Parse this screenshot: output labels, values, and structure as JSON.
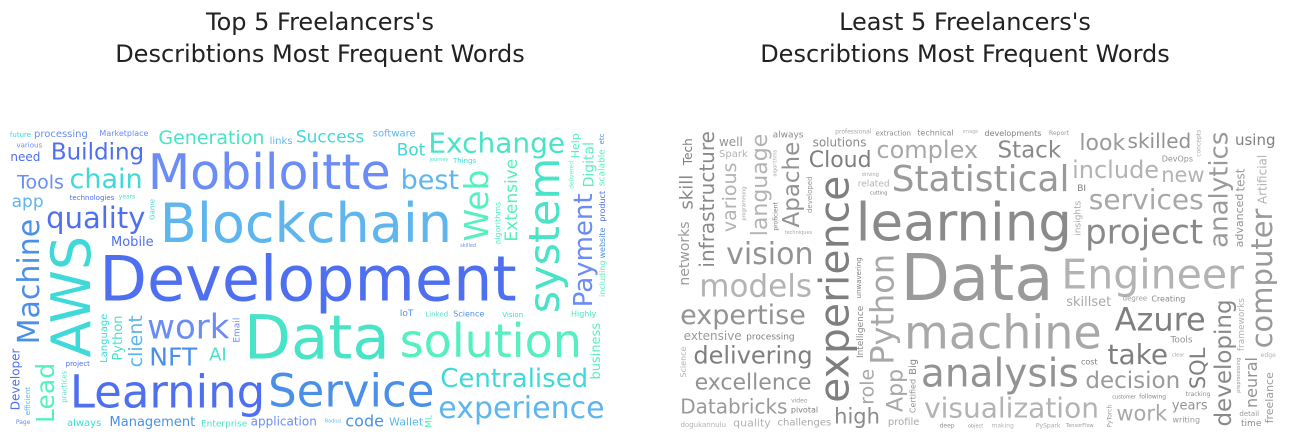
{
  "panels": [
    {
      "title_line1": "Top 5 Freelancers's",
      "title_line2": "Describtions Most Frequent Words",
      "palette": [
        "#4e6ff0",
        "#49e3c8",
        "#5fb6ef",
        "#3fd9d9",
        "#6b8cf5",
        "#56f0c0",
        "#4a90e8"
      ],
      "words": [
        {
          "text": "Development",
          "weight": 1.0
        },
        {
          "text": "Data",
          "weight": 0.98
        },
        {
          "text": "Blockchain",
          "weight": 0.86
        },
        {
          "text": "AWS",
          "weight": 0.86
        },
        {
          "text": "Mobiloitte",
          "weight": 0.78
        },
        {
          "text": "solution",
          "weight": 0.74
        },
        {
          "text": "Service",
          "weight": 0.72
        },
        {
          "text": "Learning",
          "weight": 0.72
        },
        {
          "text": "system",
          "weight": 0.68
        },
        {
          "text": "experience",
          "weight": 0.66
        },
        {
          "text": "Centralised",
          "weight": 0.56
        },
        {
          "text": "work",
          "weight": 0.52
        },
        {
          "text": "Web",
          "weight": 0.5
        },
        {
          "text": "Machine",
          "weight": 0.46
        },
        {
          "text": "quality",
          "weight": 0.44
        },
        {
          "text": "Exchange",
          "weight": 0.42
        },
        {
          "text": "best",
          "weight": 0.4
        },
        {
          "text": "chain",
          "weight": 0.4
        },
        {
          "text": "Payment",
          "weight": 0.38
        },
        {
          "text": "Lead",
          "weight": 0.36
        },
        {
          "text": "NFT",
          "weight": 0.36
        },
        {
          "text": "Building",
          "weight": 0.32
        },
        {
          "text": "Generation",
          "weight": 0.28
        },
        {
          "text": "client",
          "weight": 0.26
        },
        {
          "text": "Success",
          "weight": 0.26
        },
        {
          "text": "Tools",
          "weight": 0.26
        },
        {
          "text": "Extensive",
          "weight": 0.26
        },
        {
          "text": "code",
          "weight": 0.24
        },
        {
          "text": "Developer",
          "weight": 0.24
        },
        {
          "text": "AI",
          "weight": 0.24
        },
        {
          "text": "app",
          "weight": 0.22
        },
        {
          "text": "Bot",
          "weight": 0.22
        },
        {
          "text": "application",
          "weight": 0.2
        },
        {
          "text": "business",
          "weight": 0.18
        },
        {
          "text": "Management",
          "weight": 0.17
        },
        {
          "text": "Mobile",
          "weight": 0.17
        },
        {
          "text": "Enterprise",
          "weight": 0.17
        },
        {
          "text": "software",
          "weight": 0.16
        },
        {
          "text": "Language",
          "weight": 0.16
        },
        {
          "text": "processing",
          "weight": 0.16
        },
        {
          "text": "Digital",
          "weight": 0.15
        },
        {
          "text": "Science",
          "weight": 0.15
        },
        {
          "text": "technologies",
          "weight": 0.14
        },
        {
          "text": "Python",
          "weight": 0.14
        },
        {
          "text": "Wallet",
          "weight": 0.13
        },
        {
          "text": "always",
          "weight": 0.12
        },
        {
          "text": "Marketplace",
          "weight": 0.12
        },
        {
          "text": "algorithms",
          "weight": 0.12
        },
        {
          "text": "website",
          "weight": 0.12
        },
        {
          "text": "need",
          "weight": 0.11
        },
        {
          "text": "Highly",
          "weight": 0.11
        },
        {
          "text": "links",
          "weight": 0.11
        },
        {
          "text": "Vision",
          "weight": 0.1
        },
        {
          "text": "Email",
          "weight": 0.1
        },
        {
          "text": "Help",
          "weight": 0.1
        },
        {
          "text": "IoT",
          "weight": 0.1
        },
        {
          "text": "project",
          "weight": 0.1
        },
        {
          "text": "Linked",
          "weight": 0.09
        },
        {
          "text": "efficient",
          "weight": 0.09
        },
        {
          "text": "Things",
          "weight": 0.09
        },
        {
          "text": "various",
          "weight": 0.09
        },
        {
          "text": "including",
          "weight": 0.08
        },
        {
          "text": "Artificial",
          "weight": 0.08
        },
        {
          "text": "product",
          "weight": 0.08
        },
        {
          "text": "years",
          "weight": 0.08
        },
        {
          "text": "multiple",
          "weight": 0.08
        },
        {
          "text": "developing",
          "weight": 0.08
        },
        {
          "text": "Page",
          "weight": 0.07
        },
        {
          "text": "delivered",
          "weight": 0.07
        },
        {
          "text": "network",
          "weight": 0.07
        },
        {
          "text": "Computer",
          "weight": 0.07
        },
        {
          "text": "journey",
          "weight": 0.06
        },
        {
          "text": "Radius",
          "weight": 0.06
        },
        {
          "text": "Game",
          "weight": 0.06
        },
        {
          "text": "skilled",
          "weight": 0.06
        },
        {
          "text": "scalable",
          "weight": 0.06
        },
        {
          "text": "Intelligence",
          "weight": 0.06
        },
        {
          "text": "gateway",
          "weight": 0.06
        },
        {
          "text": "practices",
          "weight": 0.06
        },
        {
          "text": "challenging",
          "weight": 0.05
        },
        {
          "text": "future",
          "weight": 0.05
        },
        {
          "text": "designing",
          "weight": 0.05
        },
        {
          "text": "ML",
          "weight": 0.05
        },
        {
          "text": "etc",
          "weight": 0.05
        }
      ]
    },
    {
      "title_line1": "Least 5 Freelancers's",
      "title_line2": "Describtions Most Frequent Words",
      "palette": [
        "#9a9a9a",
        "#8a8a8a",
        "#a8a8a8",
        "#7f7f7f",
        "#b3b3b3",
        "#939393"
      ],
      "words": [
        {
          "text": "Data",
          "weight": 1.0
        },
        {
          "text": "learning",
          "weight": 0.82
        },
        {
          "text": "machine",
          "weight": 0.7
        },
        {
          "text": "experience",
          "weight": 0.62
        },
        {
          "text": "Engineer",
          "weight": 0.62
        },
        {
          "text": "analysis",
          "weight": 0.6
        },
        {
          "text": "Statistical",
          "weight": 0.54
        },
        {
          "text": "project",
          "weight": 0.5
        },
        {
          "text": "Python",
          "weight": 0.48
        },
        {
          "text": "Azure",
          "weight": 0.48
        },
        {
          "text": "models",
          "weight": 0.46
        },
        {
          "text": "vision",
          "weight": 0.44
        },
        {
          "text": "computer",
          "weight": 0.42
        },
        {
          "text": "developing",
          "weight": 0.42
        },
        {
          "text": "services",
          "weight": 0.4
        },
        {
          "text": "take",
          "weight": 0.4
        },
        {
          "text": "visualization",
          "weight": 0.4
        },
        {
          "text": "expertise",
          "weight": 0.38
        },
        {
          "text": "analytics",
          "weight": 0.36
        },
        {
          "text": "infrastructure",
          "weight": 0.34
        },
        {
          "text": "complex",
          "weight": 0.34
        },
        {
          "text": "delivering",
          "weight": 0.34
        },
        {
          "text": "include",
          "weight": 0.34
        },
        {
          "text": "Apache",
          "weight": 0.32
        },
        {
          "text": "decision",
          "weight": 0.32
        },
        {
          "text": "Stack",
          "weight": 0.32
        },
        {
          "text": "App",
          "weight": 0.3
        },
        {
          "text": "Cloud",
          "weight": 0.3
        },
        {
          "text": "language",
          "weight": 0.3
        },
        {
          "text": "excellence",
          "weight": 0.3
        },
        {
          "text": "look",
          "weight": 0.3
        },
        {
          "text": "high",
          "weight": 0.28
        },
        {
          "text": "work",
          "weight": 0.28
        },
        {
          "text": "SQL",
          "weight": 0.28
        },
        {
          "text": "new",
          "weight": 0.28
        },
        {
          "text": "skilled",
          "weight": 0.26
        },
        {
          "text": "Databricks",
          "weight": 0.26
        },
        {
          "text": "solutions",
          "weight": 0.26
        },
        {
          "text": "role",
          "weight": 0.24
        },
        {
          "text": "processing",
          "weight": 0.24
        },
        {
          "text": "various",
          "weight": 0.24
        },
        {
          "text": "years",
          "weight": 0.24
        },
        {
          "text": "extensive",
          "weight": 0.22
        },
        {
          "text": "skill",
          "weight": 0.22
        },
        {
          "text": "skillset",
          "weight": 0.2
        },
        {
          "text": "using",
          "weight": 0.2
        },
        {
          "text": "related",
          "weight": 0.2
        },
        {
          "text": "neural",
          "weight": 0.18
        },
        {
          "text": "networks",
          "weight": 0.18
        },
        {
          "text": "technical",
          "weight": 0.18
        },
        {
          "text": "challenges",
          "weight": 0.18
        },
        {
          "text": "developments",
          "weight": 0.18
        },
        {
          "text": "quality",
          "weight": 0.17
        },
        {
          "text": "advanced",
          "weight": 0.17
        },
        {
          "text": "freelance",
          "weight": 0.16
        },
        {
          "text": "Creating",
          "weight": 0.15
        },
        {
          "text": "profile",
          "weight": 0.15
        },
        {
          "text": "pivotal",
          "weight": 0.15
        },
        {
          "text": "Artificial",
          "weight": 0.15
        },
        {
          "text": "DevOps",
          "weight": 0.14
        },
        {
          "text": "writing",
          "weight": 0.14
        },
        {
          "text": "Intelligence",
          "weight": 0.13
        },
        {
          "text": "techniques",
          "weight": 0.13
        },
        {
          "text": "unwavering",
          "weight": 0.13
        },
        {
          "text": "dogukannulu",
          "weight": 0.12
        },
        {
          "text": "Tools",
          "weight": 0.12
        },
        {
          "text": "degree",
          "weight": 0.12
        },
        {
          "text": "always",
          "weight": 0.12
        },
        {
          "text": "insights",
          "weight": 0.12
        },
        {
          "text": "customer",
          "weight": 0.12
        },
        {
          "text": "Spark",
          "weight": 0.11
        },
        {
          "text": "efficiency",
          "weight": 0.11
        },
        {
          "text": "Report",
          "weight": 0.11
        },
        {
          "text": "Big",
          "weight": 0.11
        },
        {
          "text": "PySpark",
          "weight": 0.11
        },
        {
          "text": "Tech",
          "weight": 0.11
        },
        {
          "text": "making",
          "weight": 0.1
        },
        {
          "text": "well",
          "weight": 0.1
        },
        {
          "text": "test",
          "weight": 0.1
        },
        {
          "text": "following",
          "weight": 0.1
        },
        {
          "text": "professional",
          "weight": 0.1
        },
        {
          "text": "cost",
          "weight": 0.1
        },
        {
          "text": "Science",
          "weight": 0.1
        },
        {
          "text": "Certified",
          "weight": 0.1
        },
        {
          "text": "detail",
          "weight": 0.09
        },
        {
          "text": "time",
          "weight": 0.09
        },
        {
          "text": "driving",
          "weight": 0.09
        },
        {
          "text": "cutting",
          "weight": 0.08
        },
        {
          "text": "frameworks",
          "weight": 0.08
        },
        {
          "text": "developed",
          "weight": 0.08
        },
        {
          "text": "TensorFlow",
          "weight": 0.08
        },
        {
          "text": "extraction",
          "weight": 0.08
        },
        {
          "text": "convolutional",
          "weight": 0.08
        },
        {
          "text": "proficient",
          "weight": 0.07
        },
        {
          "text": "edge",
          "weight": 0.07
        },
        {
          "text": "deep",
          "weight": 0.07
        },
        {
          "text": "PyTorch",
          "weight": 0.07
        },
        {
          "text": "tracking",
          "weight": 0.06
        },
        {
          "text": "concepts",
          "weight": 0.06
        },
        {
          "text": "explain",
          "weight": 0.06
        },
        {
          "text": "feature",
          "weight": 0.06
        },
        {
          "text": "segmentation",
          "weight": 0.06
        },
        {
          "text": "video",
          "weight": 0.06
        },
        {
          "text": "effective",
          "weight": 0.06
        },
        {
          "text": "clear",
          "weight": 0.05
        },
        {
          "text": "recurrent",
          "weight": 0.05
        },
        {
          "text": "communicator",
          "weight": 0.05
        },
        {
          "text": "concise",
          "weight": 0.05
        },
        {
          "text": "programming",
          "weight": 0.05
        },
        {
          "text": "detection",
          "weight": 0.05
        },
        {
          "text": "algorithms",
          "weight": 0.05
        },
        {
          "text": "BI",
          "weight": 0.05
        },
        {
          "text": "image",
          "weight": 0.05
        },
        {
          "text": "preprocessing",
          "weight": 0.05
        },
        {
          "text": "object",
          "weight": 0.05
        },
        {
          "text": "implemented",
          "weight": 0.05
        }
      ]
    }
  ]
}
